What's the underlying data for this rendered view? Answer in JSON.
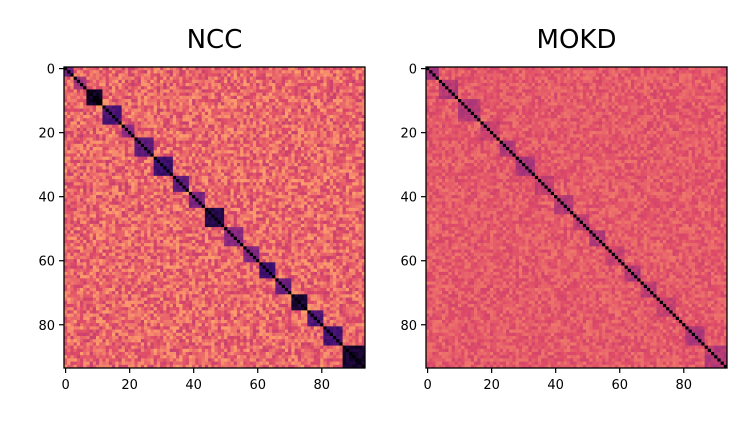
{
  "colors": {
    "colormap": "magma",
    "cmap_stops": [
      "#000004",
      "#3b0f70",
      "#8c2981",
      "#de4968",
      "#fe9f6d",
      "#fcfdbf"
    ]
  },
  "chart_data": [
    {
      "type": "heatmap",
      "title": "NCC",
      "size": 94,
      "xlim": [
        0,
        93
      ],
      "ylim": [
        93,
        0
      ],
      "x_ticks": [
        "0",
        "20",
        "40",
        "60",
        "80"
      ],
      "y_ticks": [
        "0",
        "20",
        "40",
        "60",
        "80"
      ],
      "diagonal_value": 1.0,
      "clusters": [
        {
          "start": 0,
          "end": 2,
          "value": 0.7
        },
        {
          "start": 3,
          "end": 6,
          "value": 0.55
        },
        {
          "start": 7,
          "end": 11,
          "value": 0.95
        },
        {
          "start": 12,
          "end": 17,
          "value": 0.75
        },
        {
          "start": 18,
          "end": 21,
          "value": 0.6
        },
        {
          "start": 22,
          "end": 27,
          "value": 0.72
        },
        {
          "start": 28,
          "end": 33,
          "value": 0.8
        },
        {
          "start": 34,
          "end": 38,
          "value": 0.7
        },
        {
          "start": 39,
          "end": 43,
          "value": 0.65
        },
        {
          "start": 44,
          "end": 49,
          "value": 0.88
        },
        {
          "start": 50,
          "end": 55,
          "value": 0.6
        },
        {
          "start": 56,
          "end": 60,
          "value": 0.62
        },
        {
          "start": 61,
          "end": 65,
          "value": 0.78
        },
        {
          "start": 66,
          "end": 70,
          "value": 0.68
        },
        {
          "start": 71,
          "end": 75,
          "value": 0.9
        },
        {
          "start": 76,
          "end": 80,
          "value": 0.75
        },
        {
          "start": 81,
          "end": 86,
          "value": 0.78
        },
        {
          "start": 87,
          "end": 93,
          "value": 0.92
        }
      ],
      "background_mean": 0.33,
      "background_noise": 0.13
    },
    {
      "type": "heatmap",
      "title": "MOKD",
      "size": 94,
      "xlim": [
        0,
        93
      ],
      "ylim": [
        93,
        0
      ],
      "x_ticks": [
        "0",
        "20",
        "40",
        "60",
        "80"
      ],
      "y_ticks": [
        "0",
        "20",
        "40",
        "60",
        "80"
      ],
      "diagonal_value": 1.0,
      "clusters": [
        {
          "start": 0,
          "end": 3,
          "value": 0.55
        },
        {
          "start": 4,
          "end": 9,
          "value": 0.5
        },
        {
          "start": 10,
          "end": 16,
          "value": 0.5
        },
        {
          "start": 17,
          "end": 22,
          "value": 0.45
        },
        {
          "start": 23,
          "end": 27,
          "value": 0.5
        },
        {
          "start": 28,
          "end": 33,
          "value": 0.52
        },
        {
          "start": 34,
          "end": 39,
          "value": 0.45
        },
        {
          "start": 40,
          "end": 45,
          "value": 0.5
        },
        {
          "start": 46,
          "end": 50,
          "value": 0.48
        },
        {
          "start": 51,
          "end": 55,
          "value": 0.5
        },
        {
          "start": 56,
          "end": 61,
          "value": 0.45
        },
        {
          "start": 62,
          "end": 66,
          "value": 0.5
        },
        {
          "start": 67,
          "end": 71,
          "value": 0.48
        },
        {
          "start": 72,
          "end": 77,
          "value": 0.45
        },
        {
          "start": 78,
          "end": 80,
          "value": 0.4
        },
        {
          "start": 81,
          "end": 86,
          "value": 0.52
        },
        {
          "start": 87,
          "end": 93,
          "value": 0.5
        }
      ],
      "background_mean": 0.36,
      "background_noise": 0.07
    }
  ]
}
